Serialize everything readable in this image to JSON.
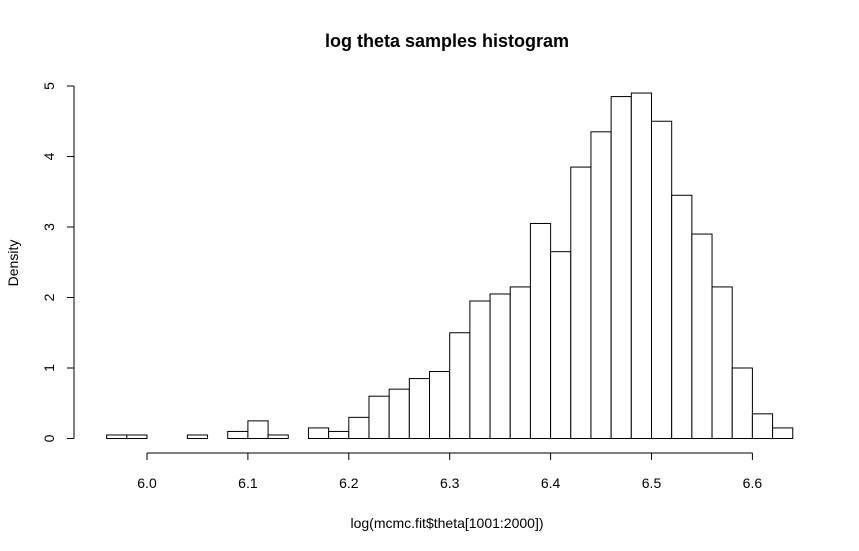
{
  "chart_data": {
    "type": "bar",
    "title": "log theta samples histogram",
    "xlabel": "log(mcmc.fit$theta[1001:2000])",
    "ylabel": "Density",
    "bin_edges": [
      5.96,
      5.98,
      6.0,
      6.02,
      6.04,
      6.06,
      6.08,
      6.1,
      6.12,
      6.14,
      6.16,
      6.18,
      6.2,
      6.22,
      6.24,
      6.26,
      6.28,
      6.3,
      6.32,
      6.34,
      6.36,
      6.38,
      6.4,
      6.42,
      6.44,
      6.46,
      6.48,
      6.5,
      6.52,
      6.54,
      6.56,
      6.58,
      6.6,
      6.62,
      6.64
    ],
    "values": [
      0.05,
      0.05,
      0,
      0,
      0.05,
      0,
      0.1,
      0.25,
      0.05,
      0,
      0.15,
      0.1,
      0.3,
      0.6,
      0.7,
      0.85,
      0.95,
      1.5,
      1.95,
      2.05,
      2.15,
      3.05,
      2.65,
      3.85,
      4.35,
      4.85,
      4.9,
      4.5,
      3.45,
      2.9,
      2.15,
      1.0,
      0.35,
      0.15
    ],
    "xlim": [
      5.96,
      6.64
    ],
    "ylim": [
      0,
      5
    ],
    "xticks": [
      "6.0",
      "6.1",
      "6.2",
      "6.3",
      "6.4",
      "6.5",
      "6.6"
    ],
    "xtick_values": [
      6.0,
      6.1,
      6.2,
      6.3,
      6.4,
      6.5,
      6.6
    ],
    "yticks": [
      "0",
      "1",
      "2",
      "3",
      "4",
      "5"
    ],
    "ytick_values": [
      0,
      1,
      2,
      3,
      4,
      5
    ],
    "grid": false,
    "bar_fill": "#ffffff",
    "bar_stroke": "#000000"
  }
}
